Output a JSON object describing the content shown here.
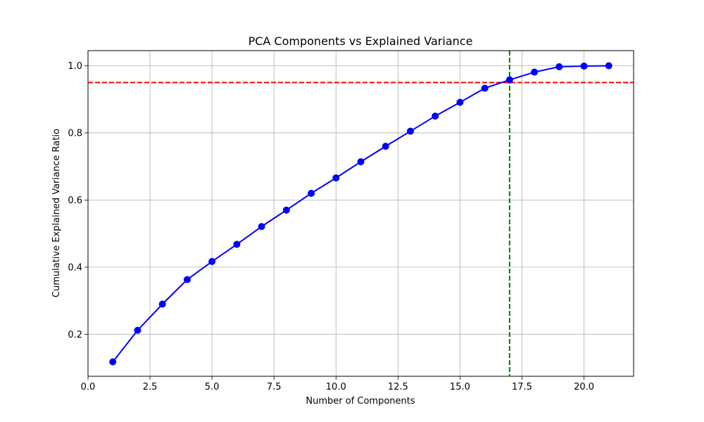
{
  "chart_data": {
    "type": "line",
    "title": "PCA Components vs Explained Variance",
    "xlabel": "Number of Components",
    "ylabel": "Cumulative Explained Variance Ratio",
    "xlim": [
      0,
      22.0
    ],
    "ylim": [
      0.075,
      1.045
    ],
    "xticks": [
      0.0,
      2.5,
      5.0,
      7.5,
      10.0,
      12.5,
      15.0,
      17.5,
      20.0
    ],
    "xtick_labels": [
      "0.0",
      "2.5",
      "5.0",
      "7.5",
      "10.0",
      "12.5",
      "15.0",
      "17.5",
      "20.0"
    ],
    "yticks": [
      0.2,
      0.4,
      0.6,
      0.8,
      1.0
    ],
    "ytick_labels": [
      "0.2",
      "0.4",
      "0.6",
      "0.8",
      "1.0"
    ],
    "grid": true,
    "series": [
      {
        "color": "#0000ff",
        "marker": "circle",
        "x": [
          1,
          2,
          3,
          4,
          5,
          6,
          7,
          8,
          9,
          10,
          11,
          12,
          13,
          14,
          15,
          16,
          17,
          18,
          19,
          20,
          21
        ],
        "values": [
          0.118,
          0.212,
          0.29,
          0.363,
          0.417,
          0.468,
          0.521,
          0.57,
          0.62,
          0.666,
          0.714,
          0.76,
          0.805,
          0.85,
          0.891,
          0.933,
          0.958,
          0.981,
          0.997,
          0.999,
          1.0
        ]
      }
    ],
    "reference_lines": [
      {
        "orientation": "horizontal",
        "value": 0.95,
        "color": "#ff0000",
        "style": "dashed"
      },
      {
        "orientation": "vertical",
        "value": 17,
        "color": "#008000",
        "style": "dashed"
      }
    ]
  }
}
